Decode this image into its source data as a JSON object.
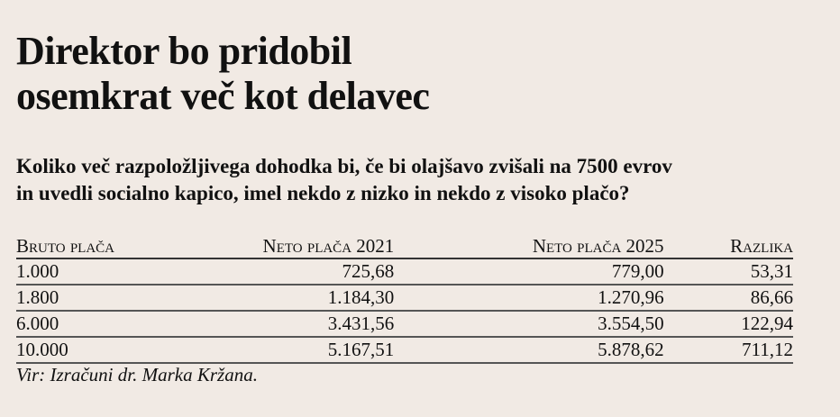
{
  "title_lines": [
    "Direktor bo pridobil",
    "osemkrat več kot delavec"
  ],
  "subtitle_lines": [
    "Koliko več razpoložljivega dohodka bi, če bi olajšavo zvišali na 7500 evrov",
    "in uvedli socialno kapico, imel nekdo z nizko in nekdo z visoko plačo?"
  ],
  "table": {
    "headers": [
      "Bruto plača",
      "Neto plača 2021",
      "Neto plača 2025",
      "Razlika"
    ],
    "rows": [
      [
        "1.000",
        "725,68",
        "779,00",
        "53,31"
      ],
      [
        "1.800",
        "1.184,30",
        "1.270,96",
        "86,66"
      ],
      [
        "6.000",
        "3.431,56",
        "3.554,50",
        "122,94"
      ],
      [
        "10.000",
        "5.167,51",
        "5.878,62",
        "711,12"
      ]
    ]
  },
  "source": "Vir: Izračuni dr. Marka Kržana."
}
